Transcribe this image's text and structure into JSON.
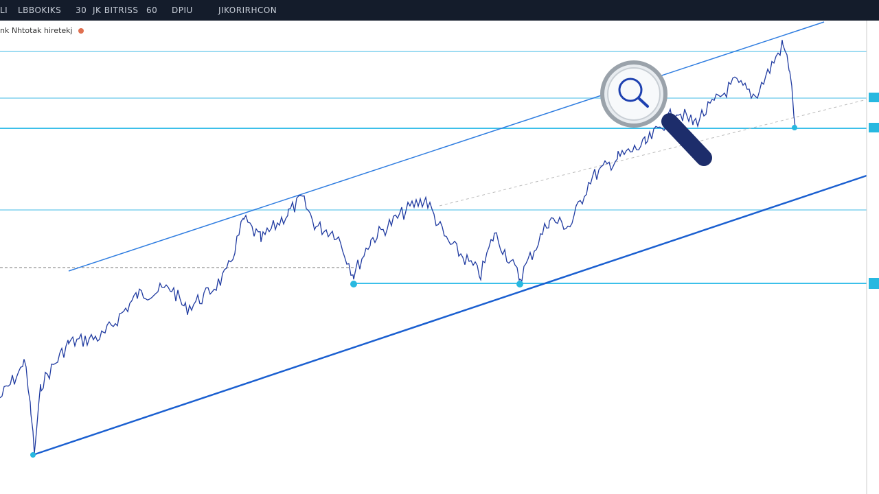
{
  "toolbar": {
    "items": [
      "LI",
      "LBBOKIKS",
      "30",
      "JK BITRISS",
      "60",
      "DPIU",
      "JIKORIRHCON"
    ]
  },
  "legend": {
    "title": "nk Nhtotak hiretekj"
  }
}
